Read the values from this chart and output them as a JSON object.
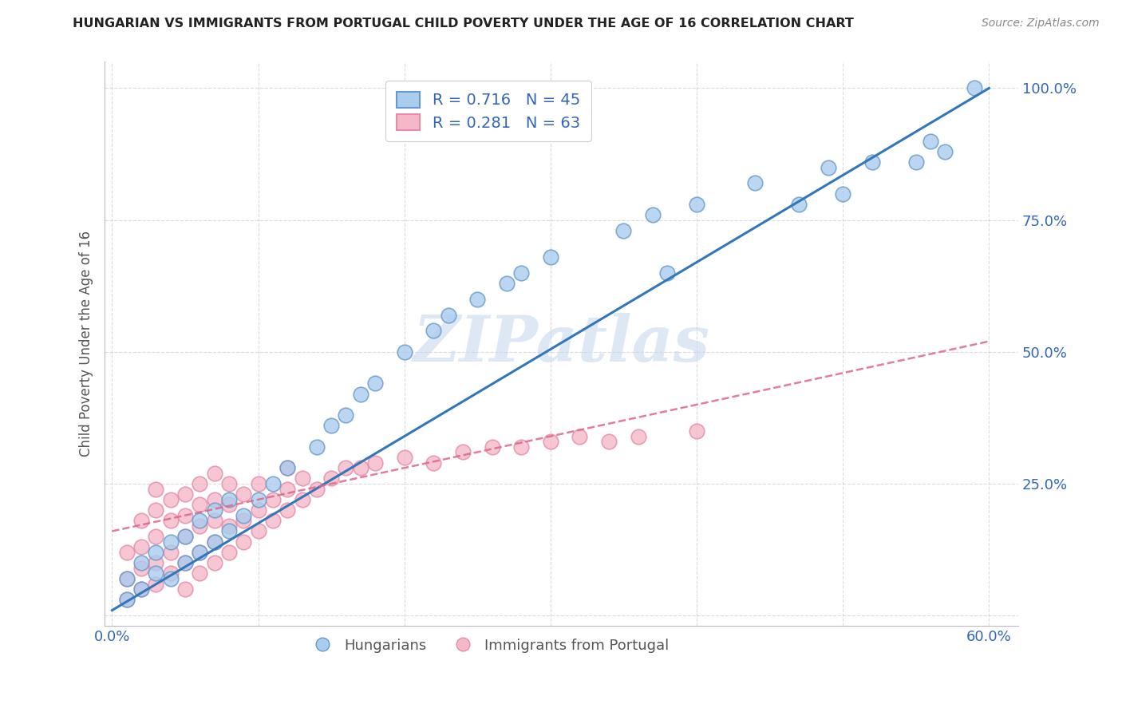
{
  "title": "HUNGARIAN VS IMMIGRANTS FROM PORTUGAL CHILD POVERTY UNDER THE AGE OF 16 CORRELATION CHART",
  "source": "Source: ZipAtlas.com",
  "ylabel": "Child Poverty Under the Age of 16",
  "xlabel": "",
  "watermark": "ZIPatlas",
  "xlim": [
    -0.005,
    0.62
  ],
  "ylim": [
    -0.02,
    1.05
  ],
  "xticks": [
    0.0,
    0.1,
    0.2,
    0.3,
    0.4,
    0.5,
    0.6
  ],
  "xticklabels": [
    "0.0%",
    "",
    "",
    "",
    "",
    "",
    "60.0%"
  ],
  "yticks": [
    0.0,
    0.25,
    0.5,
    0.75,
    1.0
  ],
  "yticklabels": [
    "",
    "25.0%",
    "50.0%",
    "75.0%",
    "100.0%"
  ],
  "hungarian_color": "#aaccee",
  "portuguese_color": "#f4b8c8",
  "hungarian_edge": "#6699cc",
  "portuguese_edge": "#e88aaa",
  "regression_blue": "#3377bb",
  "regression_pink": "#dd6688",
  "legend_label_hun": "Hungarians",
  "legend_label_port": "Immigrants from Portugal",
  "hun_slope": 1.65,
  "hun_intercept": 0.01,
  "port_slope": 0.6,
  "port_intercept": 0.16,
  "hungarian_x": [
    0.01,
    0.01,
    0.02,
    0.02,
    0.03,
    0.03,
    0.04,
    0.04,
    0.05,
    0.05,
    0.06,
    0.06,
    0.07,
    0.07,
    0.08,
    0.08,
    0.09,
    0.1,
    0.11,
    0.12,
    0.14,
    0.15,
    0.16,
    0.17,
    0.18,
    0.2,
    0.22,
    0.23,
    0.25,
    0.27,
    0.28,
    0.3,
    0.35,
    0.37,
    0.38,
    0.4,
    0.44,
    0.47,
    0.49,
    0.5,
    0.52,
    0.55,
    0.56,
    0.57,
    0.59
  ],
  "hungarian_y": [
    0.03,
    0.07,
    0.05,
    0.1,
    0.08,
    0.12,
    0.07,
    0.14,
    0.1,
    0.15,
    0.12,
    0.18,
    0.14,
    0.2,
    0.16,
    0.22,
    0.19,
    0.22,
    0.25,
    0.28,
    0.32,
    0.36,
    0.38,
    0.42,
    0.44,
    0.5,
    0.54,
    0.57,
    0.6,
    0.63,
    0.65,
    0.68,
    0.73,
    0.76,
    0.65,
    0.78,
    0.82,
    0.78,
    0.85,
    0.8,
    0.86,
    0.86,
    0.9,
    0.88,
    1.0
  ],
  "portuguese_x": [
    0.01,
    0.01,
    0.01,
    0.02,
    0.02,
    0.02,
    0.02,
    0.03,
    0.03,
    0.03,
    0.03,
    0.03,
    0.04,
    0.04,
    0.04,
    0.04,
    0.05,
    0.05,
    0.05,
    0.05,
    0.05,
    0.06,
    0.06,
    0.06,
    0.06,
    0.06,
    0.07,
    0.07,
    0.07,
    0.07,
    0.07,
    0.08,
    0.08,
    0.08,
    0.08,
    0.09,
    0.09,
    0.09,
    0.1,
    0.1,
    0.1,
    0.11,
    0.11,
    0.12,
    0.12,
    0.12,
    0.13,
    0.13,
    0.14,
    0.15,
    0.16,
    0.17,
    0.18,
    0.2,
    0.22,
    0.24,
    0.26,
    0.28,
    0.3,
    0.32,
    0.34,
    0.36,
    0.4
  ],
  "portuguese_y": [
    0.03,
    0.07,
    0.12,
    0.05,
    0.09,
    0.13,
    0.18,
    0.06,
    0.1,
    0.15,
    0.2,
    0.24,
    0.08,
    0.12,
    0.18,
    0.22,
    0.05,
    0.1,
    0.15,
    0.19,
    0.23,
    0.08,
    0.12,
    0.17,
    0.21,
    0.25,
    0.1,
    0.14,
    0.18,
    0.22,
    0.27,
    0.12,
    0.17,
    0.21,
    0.25,
    0.14,
    0.18,
    0.23,
    0.16,
    0.2,
    0.25,
    0.18,
    0.22,
    0.2,
    0.24,
    0.28,
    0.22,
    0.26,
    0.24,
    0.26,
    0.28,
    0.28,
    0.29,
    0.3,
    0.29,
    0.31,
    0.32,
    0.32,
    0.33,
    0.34,
    0.33,
    0.34,
    0.35
  ]
}
